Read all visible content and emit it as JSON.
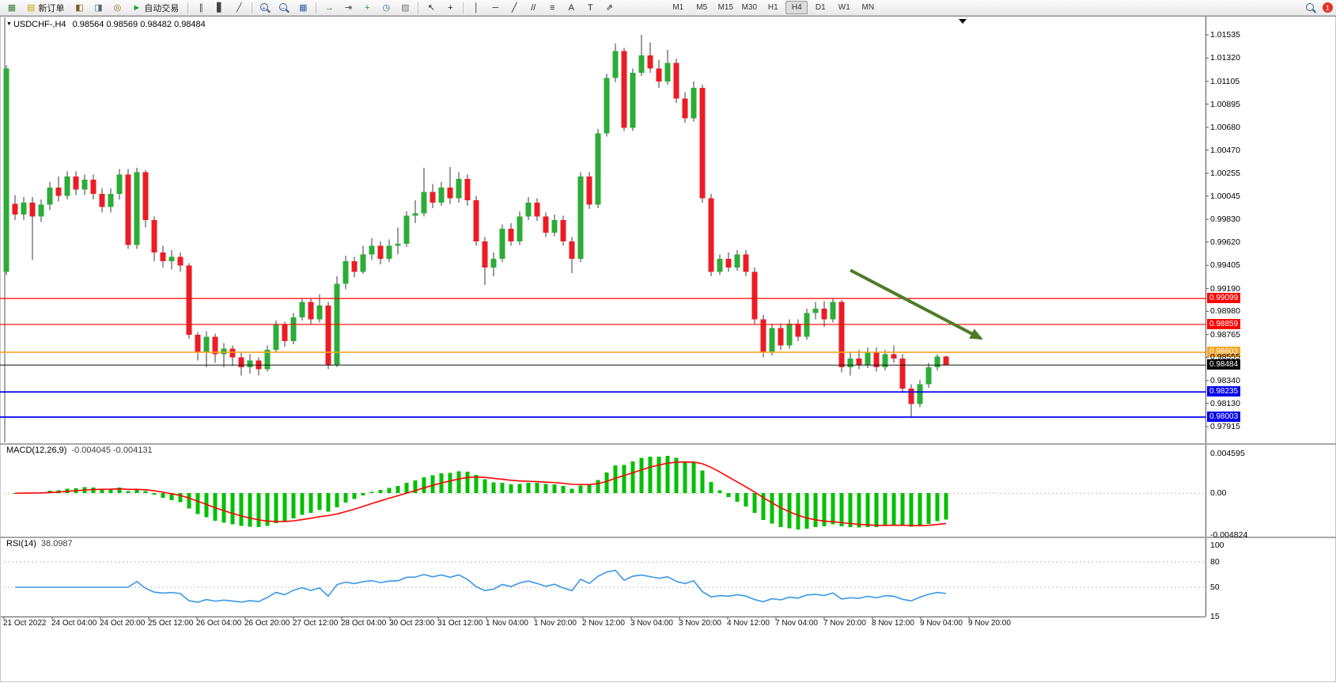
{
  "toolbar": {
    "items": [
      {
        "type": "icon",
        "name": "new-chart-icon",
        "glyph": "▦",
        "color": "#2e7d32"
      },
      {
        "type": "button",
        "name": "new-order-button",
        "glyph": "▤",
        "color": "#c8a200",
        "label": "新订单"
      },
      {
        "type": "icon",
        "name": "market-watch-icon",
        "glyph": "◧",
        "color": "#7a5c20"
      },
      {
        "type": "icon",
        "name": "data-window-icon",
        "glyph": "◨",
        "color": "#55657a"
      },
      {
        "type": "icon",
        "name": "navigator-icon",
        "glyph": "◎",
        "color": "#8a6d1a"
      },
      {
        "type": "button",
        "name": "autotrade-button",
        "glyph": "►",
        "color": "#18a335",
        "label": "自动交易"
      },
      {
        "type": "sep"
      },
      {
        "type": "icon",
        "name": "bar-chart-icon",
        "glyph": "∥",
        "color": "#444444"
      },
      {
        "type": "icon",
        "name": "candlestick-chart-icon",
        "glyph": "▋",
        "color": "#444444"
      },
      {
        "type": "icon",
        "name": "line-chart-icon",
        "glyph": "╱",
        "color": "#444444"
      },
      {
        "type": "sep"
      },
      {
        "type": "magnifier",
        "name": "zoom-in-icon",
        "sign": "+"
      },
      {
        "type": "magnifier",
        "name": "zoom-out-icon",
        "sign": "−"
      },
      {
        "type": "icon",
        "name": "tile-windows-icon",
        "glyph": "▦",
        "color": "#3263a8"
      },
      {
        "type": "sep"
      },
      {
        "type": "icon",
        "name": "auto-scroll-icon",
        "glyph": "→",
        "color": "#2d6e2d"
      },
      {
        "type": "icon",
        "name": "chart-shift-icon",
        "glyph": "⇥",
        "color": "#444444"
      },
      {
        "type": "icon",
        "name": "indicators-icon",
        "glyph": "+",
        "color": "#18a335"
      },
      {
        "type": "icon",
        "name": "periods-icon",
        "glyph": "◷",
        "color": "#3263a8"
      },
      {
        "type": "icon",
        "name": "templates-icon",
        "glyph": "▨",
        "color": "#777777"
      },
      {
        "type": "sep"
      },
      {
        "type": "icon",
        "name": "cursor-icon",
        "glyph": "↖",
        "color": "#222222"
      },
      {
        "type": "icon",
        "name": "crosshair-icon",
        "glyph": "+",
        "color": "#222222"
      },
      {
        "type": "sep"
      },
      {
        "type": "icon",
        "name": "vline-icon",
        "glyph": "│",
        "color": "#222222"
      },
      {
        "type": "icon",
        "name": "hline-icon",
        "glyph": "─",
        "color": "#222222"
      },
      {
        "type": "icon",
        "name": "trendline-icon",
        "glyph": "╱",
        "color": "#222222"
      },
      {
        "type": "icon",
        "name": "channel-icon",
        "glyph": "//",
        "color": "#222222"
      },
      {
        "type": "icon",
        "name": "fibonacci-icon",
        "glyph": "≡",
        "color": "#222222"
      },
      {
        "type": "icon",
        "name": "text-icon",
        "glyph": "A",
        "color": "#222222"
      },
      {
        "type": "icon",
        "name": "label-icon",
        "glyph": "T",
        "color": "#222222"
      },
      {
        "type": "icon",
        "name": "arrows-icon",
        "glyph": "⇗",
        "color": "#222222"
      }
    ],
    "timeframes": [
      "M1",
      "M5",
      "M15",
      "M30",
      "H1",
      "H4",
      "D1",
      "W1",
      "MN"
    ],
    "active_timeframe": "H4",
    "badge": "1"
  },
  "chart": {
    "symbol_period": "USDCHF-,H4",
    "ohlc_text": "0.98564 0.98569 0.98482 0.98484",
    "macd": {
      "name": "MACD(12,26,9)",
      "values": "-0.004045 -0.004131"
    },
    "rsi": {
      "name": "RSI(14)",
      "value": "38.0987"
    }
  },
  "chart_data": {
    "type": "candlestick",
    "symbol": "USDCHF-",
    "timeframe": "H4",
    "current_price": {
      "price": 0.98484,
      "label": "0.98484",
      "color": "#000000"
    },
    "y_axis": {
      "ticks": [
        "1.01535",
        "1.01320",
        "1.01105",
        "1.00895",
        "1.00680",
        "1.00470",
        "1.00255",
        "1.00045",
        "0.99830",
        "0.99620",
        "0.99405",
        "0.99190",
        "0.98980",
        "0.98765",
        "0.98555",
        "0.98340",
        "0.98130",
        "0.97915"
      ]
    },
    "x_axis": {
      "labels": [
        "21 Oct 2022",
        "24 Oct 04:00",
        "24 Oct 20:00",
        "25 Oct 12:00",
        "26 Oct 04:00",
        "26 Oct 20:00",
        "27 Oct 12:00",
        "28 Oct 04:00",
        "30 Oct 23:00",
        "31 Oct 12:00",
        "1 Nov 04:00",
        "1 Nov 20:00",
        "2 Nov 12:00",
        "3 Nov 04:00",
        "3 Nov 20:00",
        "4 Nov 12:00",
        "7 Nov 04:00",
        "7 Nov 20:00",
        "8 Nov 12:00",
        "9 Nov 04:00",
        "9 Nov 20:00"
      ]
    },
    "hlines": [
      {
        "price": 0.99099,
        "label": "0.99099",
        "color": "#ff0000",
        "width": 1.2
      },
      {
        "price": 0.98859,
        "label": "0.98859",
        "color": "#ff0000",
        "width": 1.2
      },
      {
        "price": 0.98602,
        "label": "0.98602",
        "color": "#f5a623",
        "width": 1.6
      },
      {
        "price": 0.98235,
        "label": "0.98235",
        "color": "#0000ee",
        "width": 1.8
      },
      {
        "price": 0.98003,
        "label": "0.98003",
        "color": "#0000ee",
        "width": 1.8
      }
    ],
    "indicators": {
      "macd": {
        "params": [
          12,
          26,
          9
        ],
        "display": "-0.004045 -0.004131",
        "axis": [
          "0.004595",
          "0.00",
          "-0.004824"
        ]
      },
      "rsi": {
        "period": 14,
        "display": "38.0987",
        "axis": [
          "100",
          "80",
          "50",
          "15"
        ],
        "levels": [
          80,
          50
        ]
      }
    },
    "annotations": {
      "trend_arrow": {
        "from_bar": 97,
        "from_price": 0.9936,
        "to_bar": 112,
        "to_price": 0.9873,
        "color": "#4f7b28"
      }
    },
    "style": {
      "up_color": "#2bad37",
      "down_color": "#ed1c24",
      "wick_color": "#3a3a3a",
      "macd_color": "#00c000",
      "signal_color": "#ff0000",
      "rsi_color": "#3a97e8",
      "axis_color": "#555555",
      "level_dotted_color": "#bcbcbc"
    },
    "candles": [
      [
        0.99345,
        1.01255,
        0.99315,
        1.01225
      ],
      [
        0.99975,
        1.00055,
        0.99825,
        0.99875
      ],
      [
        0.99875,
        1.00035,
        0.99825,
        0.99985
      ],
      [
        0.99985,
        1.00035,
        0.99455,
        0.99855
      ],
      [
        0.99855,
        1.00015,
        0.99805,
        0.99965
      ],
      [
        0.99965,
        1.00175,
        0.99915,
        1.00125
      ],
      [
        1.00125,
        1.00225,
        0.99995,
        1.00045
      ],
      [
        1.00045,
        1.00275,
        1.00015,
        1.00225
      ],
      [
        1.00225,
        1.00275,
        1.00055,
        1.00105
      ],
      [
        1.00105,
        1.00245,
        1.00055,
        1.00195
      ],
      [
        1.00195,
        1.00245,
        1.00015,
        1.00065
      ],
      [
        1.00065,
        1.00115,
        0.99895,
        0.99945
      ],
      [
        0.99945,
        1.00115,
        0.99895,
        1.00065
      ],
      [
        1.00065,
        1.00295,
        1.00015,
        1.00245
      ],
      [
        1.00245,
        1.00295,
        0.99555,
        0.99595
      ],
      [
        0.99595,
        1.00305,
        0.99555,
        1.00265
      ],
      [
        1.00265,
        1.00285,
        0.99755,
        0.99825
      ],
      [
        0.99825,
        0.99855,
        0.99445,
        0.99525
      ],
      [
        0.99525,
        0.99585,
        0.99385,
        0.99445
      ],
      [
        0.99445,
        0.99545,
        0.99365,
        0.99485
      ],
      [
        0.99485,
        0.99525,
        0.99345,
        0.99405
      ],
      [
        0.99405,
        0.99425,
        0.98725,
        0.98765
      ],
      [
        0.98765,
        0.98785,
        0.98525,
        0.98605
      ],
      [
        0.98605,
        0.98795,
        0.98465,
        0.98745
      ],
      [
        0.98745,
        0.98775,
        0.98505,
        0.98585
      ],
      [
        0.98585,
        0.98685,
        0.98465,
        0.98635
      ],
      [
        0.98635,
        0.98665,
        0.98475,
        0.98555
      ],
      [
        0.98555,
        0.98595,
        0.98385,
        0.98465
      ],
      [
        0.98465,
        0.98585,
        0.98405,
        0.98525
      ],
      [
        0.98525,
        0.98555,
        0.98385,
        0.98445
      ],
      [
        0.98445,
        0.98665,
        0.98425,
        0.98625
      ],
      [
        0.98625,
        0.98895,
        0.98595,
        0.98855
      ],
      [
        0.98855,
        0.98885,
        0.98655,
        0.98705
      ],
      [
        0.98705,
        0.98965,
        0.98675,
        0.98925
      ],
      [
        0.98925,
        0.99105,
        0.98895,
        0.99065
      ],
      [
        0.99065,
        0.99105,
        0.98855,
        0.98905
      ],
      [
        0.98905,
        0.99135,
        0.98875,
        0.99035
      ],
      [
        0.99035,
        0.99065,
        0.98445,
        0.98485
      ],
      [
        0.98485,
        0.99305,
        0.98465,
        0.99235
      ],
      [
        0.99235,
        0.99495,
        0.99185,
        0.99445
      ],
      [
        0.99445,
        0.99485,
        0.99295,
        0.99345
      ],
      [
        0.99345,
        0.99585,
        0.99325,
        0.99505
      ],
      [
        0.99505,
        0.99655,
        0.99455,
        0.99585
      ],
      [
        0.99585,
        0.99625,
        0.99415,
        0.99465
      ],
      [
        0.99465,
        0.99645,
        0.99435,
        0.99585
      ],
      [
        0.99585,
        0.99755,
        0.99505,
        0.99605
      ],
      [
        0.99605,
        0.99905,
        0.99575,
        0.99865
      ],
      [
        0.99865,
        1.00005,
        0.99795,
        0.99885
      ],
      [
        0.99885,
        1.00305,
        0.99855,
        1.00085
      ],
      [
        1.00085,
        1.00155,
        0.99935,
        0.99985
      ],
      [
        0.99985,
        1.00175,
        0.99955,
        1.00125
      ],
      [
        1.00125,
        1.00315,
        0.99975,
        1.00025
      ],
      [
        1.00025,
        1.00265,
        0.99985,
        1.00205
      ],
      [
        1.00205,
        1.00245,
        0.99955,
        1.00005
      ],
      [
        1.00005,
        1.00045,
        0.99585,
        0.99625
      ],
      [
        0.99625,
        0.99665,
        0.99225,
        0.99385
      ],
      [
        0.99385,
        0.99525,
        0.99305,
        0.99465
      ],
      [
        0.99465,
        0.99785,
        0.99435,
        0.99745
      ],
      [
        0.99745,
        0.99795,
        0.99585,
        0.99625
      ],
      [
        0.99625,
        0.99905,
        0.99595,
        0.99855
      ],
      [
        0.99855,
        1.00035,
        0.99825,
        0.99985
      ],
      [
        0.99985,
        1.00025,
        0.99815,
        0.99855
      ],
      [
        0.99855,
        0.99895,
        0.99665,
        0.99705
      ],
      [
        0.99705,
        0.99875,
        0.99675,
        0.99825
      ],
      [
        0.99825,
        0.99865,
        0.99585,
        0.99625
      ],
      [
        0.99625,
        0.99665,
        0.99335,
        0.99465
      ],
      [
        0.99465,
        1.00265,
        0.99435,
        1.00225
      ],
      [
        1.00225,
        1.00265,
        0.99925,
        0.99965
      ],
      [
        0.99965,
        1.00665,
        0.99935,
        1.00625
      ],
      [
        1.00625,
        1.01175,
        1.00595,
        1.01135
      ],
      [
        1.01135,
        1.01455,
        1.01095,
        1.01385
      ],
      [
        1.01385,
        1.01415,
        1.00645,
        1.00675
      ],
      [
        1.00675,
        1.01225,
        1.00645,
        1.01185
      ],
      [
        1.01185,
        1.01535,
        1.01155,
        1.01345
      ],
      [
        1.01345,
        1.01465,
        1.01185,
        1.01225
      ],
      [
        1.01225,
        1.01305,
        1.01045,
        1.01105
      ],
      [
        1.01105,
        1.01395,
        1.01075,
        1.01275
      ],
      [
        1.01275,
        1.01315,
        1.00905,
        1.00945
      ],
      [
        1.00945,
        1.01005,
        1.00725,
        1.00765
      ],
      [
        1.00765,
        1.01105,
        1.00735,
        1.01045
      ],
      [
        1.01045,
        1.01075,
        0.99985,
        1.00025
      ],
      [
        1.00025,
        1.00065,
        0.99305,
        0.99345
      ],
      [
        0.99345,
        0.99505,
        0.99315,
        0.99465
      ],
      [
        0.99465,
        0.99525,
        0.99345,
        0.99385
      ],
      [
        0.99385,
        0.99545,
        0.99355,
        0.99505
      ],
      [
        0.99505,
        0.99545,
        0.99305,
        0.99345
      ],
      [
        0.99345,
        0.99385,
        0.98855,
        0.98905
      ],
      [
        0.98905,
        0.98945,
        0.98555,
        0.98605
      ],
      [
        0.98605,
        0.98865,
        0.98575,
        0.98825
      ],
      [
        0.98825,
        0.98865,
        0.98625,
        0.98665
      ],
      [
        0.98665,
        0.98905,
        0.98635,
        0.98865
      ],
      [
        0.98865,
        0.98905,
        0.98705,
        0.98745
      ],
      [
        0.98745,
        0.99005,
        0.98715,
        0.98965
      ],
      [
        0.98965,
        0.99065,
        0.98905,
        0.99005
      ],
      [
        0.99005,
        0.99075,
        0.98835,
        0.98905
      ],
      [
        0.98905,
        0.99105,
        0.98875,
        0.99065
      ],
      [
        0.99065,
        0.99085,
        0.98415,
        0.98465
      ],
      [
        0.98465,
        0.98605,
        0.98385,
        0.98545
      ],
      [
        0.98545,
        0.98625,
        0.98445,
        0.98485
      ],
      [
        0.98485,
        0.98645,
        0.98455,
        0.98605
      ],
      [
        0.98605,
        0.98645,
        0.98425,
        0.98465
      ],
      [
        0.98465,
        0.98625,
        0.98435,
        0.98585
      ],
      [
        0.98585,
        0.98665,
        0.98505,
        0.98545
      ],
      [
        0.98545,
        0.98585,
        0.98225,
        0.98265
      ],
      [
        0.98265,
        0.98305,
        0.98003,
        0.98125
      ],
      [
        0.98125,
        0.98345,
        0.98095,
        0.98305
      ],
      [
        0.98305,
        0.98505,
        0.98275,
        0.98465
      ],
      [
        0.98465,
        0.98585,
        0.98435,
        0.98564
      ],
      [
        0.98564,
        0.98569,
        0.98482,
        0.98484
      ]
    ]
  }
}
